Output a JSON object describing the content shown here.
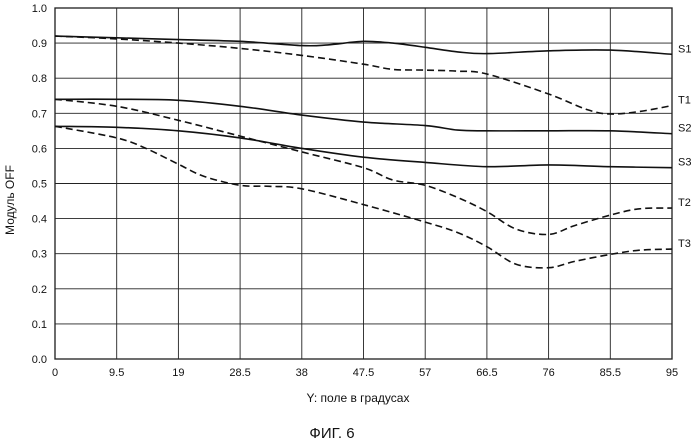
{
  "chart_data": {
    "type": "line",
    "xlabel": "Y: поле в градусах",
    "ylabel": "Модуль OFF",
    "caption": "ФИГ. 6",
    "x": [
      0,
      9.5,
      19,
      28.5,
      38,
      47.5,
      57,
      66.5,
      76,
      85.5,
      95
    ],
    "x_tick_labels": [
      "0",
      "9.5",
      "19",
      "28.5",
      "38",
      "47.5",
      "57",
      "66.5",
      "76",
      "85.5",
      "95"
    ],
    "y_tick_labels": [
      "0.0",
      "0.1",
      "0.2",
      "0.3",
      "0.4",
      "0.5",
      "0.6",
      "0.7",
      "0.8",
      "0.9",
      "1.0"
    ],
    "xlim": [
      0,
      95
    ],
    "ylim": [
      0,
      1.0
    ],
    "grid": true,
    "series": [
      {
        "name": "S1",
        "style": "solid",
        "x": [
          0,
          9.5,
          19,
          28.5,
          38,
          42,
          47.5,
          52,
          57,
          62,
          66.5,
          76,
          85.5,
          95
        ],
        "values": [
          0.92,
          0.915,
          0.91,
          0.905,
          0.893,
          0.895,
          0.905,
          0.9,
          0.888,
          0.875,
          0.87,
          0.878,
          0.88,
          0.868
        ]
      },
      {
        "name": "T1",
        "style": "dashed",
        "x": [
          0,
          9.5,
          19,
          28.5,
          38,
          47.5,
          52,
          57,
          62,
          66.5,
          76,
          82,
          85.5,
          90,
          95
        ],
        "values": [
          0.92,
          0.912,
          0.9,
          0.885,
          0.865,
          0.84,
          0.825,
          0.823,
          0.82,
          0.812,
          0.755,
          0.71,
          0.698,
          0.705,
          0.722
        ]
      },
      {
        "name": "S2",
        "style": "solid",
        "x": [
          0,
          9.5,
          19,
          28.5,
          38,
          47.5,
          57,
          62,
          66.5,
          76,
          85.5,
          95
        ],
        "values": [
          0.74,
          0.74,
          0.737,
          0.72,
          0.695,
          0.675,
          0.665,
          0.652,
          0.65,
          0.65,
          0.65,
          0.642
        ]
      },
      {
        "name": "S3",
        "style": "solid",
        "x": [
          0,
          9.5,
          19,
          28.5,
          38,
          47.5,
          57,
          66.5,
          76,
          85.5,
          95
        ],
        "values": [
          0.663,
          0.66,
          0.65,
          0.63,
          0.6,
          0.575,
          0.56,
          0.548,
          0.553,
          0.548,
          0.545
        ]
      },
      {
        "name": "T2",
        "style": "dashed",
        "x": [
          0,
          9.5,
          19,
          28.5,
          38,
          47.5,
          52,
          57,
          62,
          66.5,
          71,
          76,
          80,
          85.5,
          90,
          95
        ],
        "values": [
          0.74,
          0.72,
          0.68,
          0.635,
          0.59,
          0.545,
          0.51,
          0.495,
          0.46,
          0.42,
          0.37,
          0.355,
          0.38,
          0.41,
          0.428,
          0.43
        ]
      },
      {
        "name": "T3",
        "style": "dashed",
        "x": [
          0,
          9.5,
          14,
          19,
          23,
          28.5,
          33,
          38,
          47.5,
          57,
          62,
          66.5,
          71,
          76,
          80,
          85.5,
          90,
          95
        ],
        "values": [
          0.663,
          0.63,
          0.6,
          0.555,
          0.52,
          0.495,
          0.492,
          0.485,
          0.44,
          0.39,
          0.36,
          0.32,
          0.27,
          0.26,
          0.278,
          0.298,
          0.31,
          0.313
        ]
      }
    ]
  }
}
